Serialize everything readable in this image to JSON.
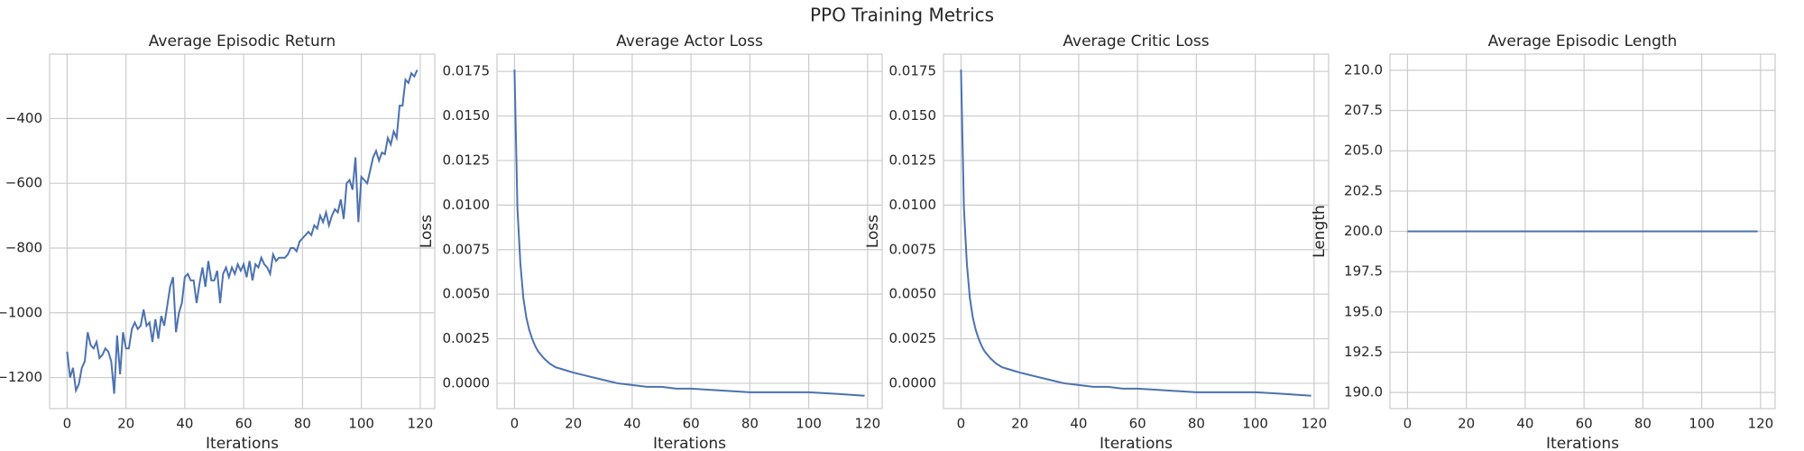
{
  "title": "PPO Training Metrics",
  "chart_data": [
    {
      "type": "line",
      "title": "Average Episodic Return",
      "xlabel": "Iterations",
      "color": "#4c72b0",
      "x": [
        0,
        1,
        2,
        3,
        4,
        5,
        6,
        7,
        8,
        9,
        10,
        11,
        12,
        13,
        14,
        15,
        16,
        17,
        18,
        19,
        20,
        21,
        22,
        23,
        24,
        25,
        26,
        27,
        28,
        29,
        30,
        31,
        32,
        33,
        34,
        35,
        36,
        37,
        38,
        39,
        40,
        41,
        42,
        43,
        44,
        45,
        46,
        47,
        48,
        49,
        50,
        51,
        52,
        53,
        54,
        55,
        56,
        57,
        58,
        59,
        60,
        61,
        62,
        63,
        64,
        65,
        66,
        67,
        68,
        69,
        70,
        71,
        72,
        73,
        74,
        75,
        76,
        77,
        78,
        79,
        80,
        81,
        82,
        83,
        84,
        85,
        86,
        87,
        88,
        89,
        90,
        91,
        92,
        93,
        94,
        95,
        96,
        97,
        98,
        99,
        100,
        101,
        102,
        103,
        104,
        105,
        106,
        107,
        108,
        109,
        110,
        111,
        112,
        113,
        114,
        115,
        116,
        117,
        118,
        119
      ],
      "values": [
        -1120,
        -1200,
        -1170,
        -1240,
        -1220,
        -1170,
        -1150,
        -1060,
        -1100,
        -1110,
        -1090,
        -1140,
        -1130,
        -1110,
        -1120,
        -1150,
        -1250,
        -1070,
        -1190,
        -1060,
        -1110,
        -1110,
        -1050,
        -1030,
        -1050,
        -1040,
        -990,
        -1040,
        -1030,
        -1090,
        -1020,
        -1080,
        -1010,
        -1040,
        -980,
        -920,
        -890,
        -1060,
        -1000,
        -970,
        -890,
        -880,
        -900,
        -900,
        -970,
        -910,
        -860,
        -920,
        -840,
        -900,
        -900,
        -870,
        -970,
        -880,
        -860,
        -890,
        -860,
        -880,
        -850,
        -870,
        -850,
        -890,
        -840,
        -900,
        -850,
        -860,
        -830,
        -850,
        -860,
        -880,
        -820,
        -840,
        -830,
        -830,
        -830,
        -820,
        -800,
        -800,
        -810,
        -780,
        -770,
        -760,
        -750,
        -760,
        -730,
        -740,
        -700,
        -720,
        -690,
        -730,
        -700,
        -680,
        -690,
        -650,
        -710,
        -600,
        -590,
        -620,
        -520,
        -720,
        -580,
        -590,
        -600,
        -560,
        -520,
        -500,
        -530,
        -505,
        -510,
        -460,
        -480,
        -440,
        -460,
        -360,
        -360,
        -280,
        -290,
        -260,
        -270,
        -250
      ],
      "xlim": [
        -5.95,
        124.95
      ],
      "xticks": [
        0,
        20,
        40,
        60,
        80,
        100,
        120
      ],
      "ylim": [
        -1296,
        -201
      ],
      "yticks": [
        {
          "value": -1200,
          "label": "−1200"
        },
        {
          "value": -1000,
          "label": "−1000"
        },
        {
          "value": -800,
          "label": "−800"
        },
        {
          "value": -600,
          "label": "−600"
        },
        {
          "value": -400,
          "label": "−400"
        }
      ],
      "grid": true
    },
    {
      "type": "line",
      "title": "Average Actor Loss",
      "xlabel": "Iterations",
      "ylabel": "Loss",
      "color": "#4c72b0",
      "x": [
        0,
        1,
        2,
        3,
        4,
        5,
        6,
        7,
        8,
        10,
        12,
        14,
        16,
        18,
        20,
        25,
        30,
        35,
        40,
        45,
        50,
        55,
        60,
        70,
        80,
        90,
        100,
        110,
        119
      ],
      "values": [
        0.0176,
        0.0098,
        0.0067,
        0.0048,
        0.0037,
        0.003,
        0.0025,
        0.0021,
        0.0018,
        0.0014,
        0.0011,
        0.0009,
        0.0008,
        0.0007,
        0.0006,
        0.0004,
        0.0002,
        0.0,
        -0.0001,
        -0.0002,
        -0.0002,
        -0.0003,
        -0.0003,
        -0.0004,
        -0.0005,
        -0.0005,
        -0.0005,
        -0.0006,
        -0.0007
      ],
      "xlim": [
        -5.95,
        124.95
      ],
      "xticks": [
        0,
        20,
        40,
        60,
        80,
        100,
        120
      ],
      "ylim": [
        -0.00142,
        0.01847
      ],
      "yticks": [
        {
          "value": 0,
          "label": "0.0000"
        },
        0.0025,
        {
          "value": 0.005,
          "label": "0.0050"
        },
        0.0075,
        {
          "value": 0.01,
          "label": "0.0100"
        },
        0.0125,
        {
          "value": 0.015,
          "label": "0.0150"
        },
        0.0175
      ],
      "grid": true
    },
    {
      "type": "line",
      "title": "Average Critic Loss",
      "xlabel": "Iterations",
      "ylabel": "Loss",
      "color": "#4c72b0",
      "x": [
        0,
        1,
        2,
        3,
        4,
        5,
        6,
        7,
        8,
        10,
        12,
        14,
        16,
        18,
        20,
        25,
        30,
        35,
        40,
        45,
        50,
        55,
        60,
        70,
        80,
        90,
        100,
        110,
        119
      ],
      "values": [
        0.0176,
        0.0098,
        0.0067,
        0.0048,
        0.0037,
        0.003,
        0.0025,
        0.0021,
        0.0018,
        0.0014,
        0.0011,
        0.0009,
        0.0008,
        0.0007,
        0.0006,
        0.0004,
        0.0002,
        0.0,
        -0.0001,
        -0.0002,
        -0.0002,
        -0.0003,
        -0.0003,
        -0.0004,
        -0.0005,
        -0.0005,
        -0.0005,
        -0.0006,
        -0.0007
      ],
      "xlim": [
        -5.95,
        124.95
      ],
      "xticks": [
        0,
        20,
        40,
        60,
        80,
        100,
        120
      ],
      "ylim": [
        -0.00142,
        0.01847
      ],
      "yticks": [
        {
          "value": 0,
          "label": "0.0000"
        },
        0.0025,
        {
          "value": 0.005,
          "label": "0.0050"
        },
        0.0075,
        {
          "value": 0.01,
          "label": "0.0100"
        },
        0.0125,
        {
          "value": 0.015,
          "label": "0.0150"
        },
        0.0175
      ],
      "grid": true
    },
    {
      "type": "line",
      "title": "Average Episodic Length",
      "xlabel": "Iterations",
      "ylabel": "Length",
      "color": "#4c72b0",
      "x": [
        0,
        119
      ],
      "values": [
        200,
        200
      ],
      "xlim": [
        -5.95,
        124.95
      ],
      "xticks": [
        0,
        20,
        40,
        60,
        80,
        100,
        120
      ],
      "ylim": [
        189,
        211
      ],
      "yticks": [
        {
          "value": 190,
          "label": "190.0"
        },
        192.5,
        {
          "value": 195,
          "label": "195.0"
        },
        197.5,
        {
          "value": 200,
          "label": "200.0"
        },
        202.5,
        {
          "value": 205,
          "label": "205.0"
        },
        207.5,
        {
          "value": 210,
          "label": "210.0"
        }
      ],
      "grid": true
    }
  ]
}
